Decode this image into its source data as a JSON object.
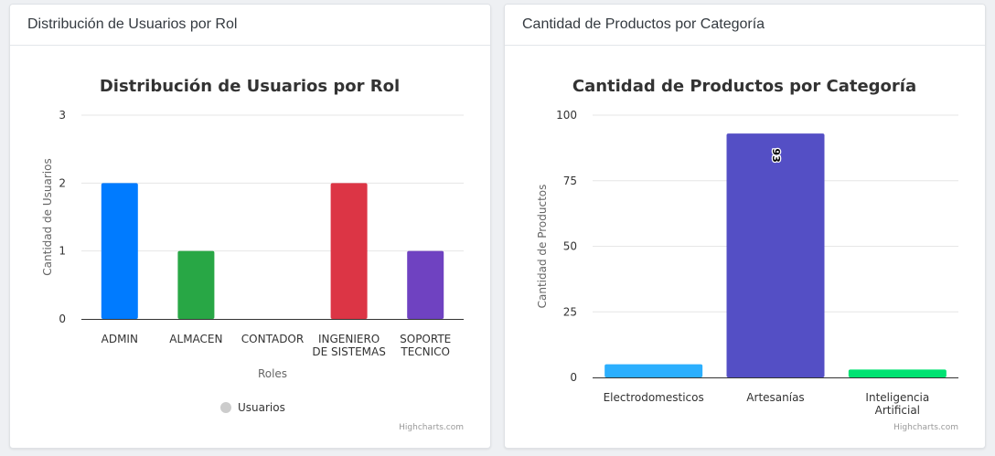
{
  "cards": [
    {
      "header": "Distribución de Usuarios por Rol",
      "credits": "Highcharts.com"
    },
    {
      "header": "Cantidad de Productos por Categoría",
      "credits": "Highcharts.com"
    }
  ],
  "chart_data": [
    {
      "type": "bar",
      "title": "Distribución de Usuarios por Rol",
      "xlabel": "Roles",
      "ylabel": "Cantidad de Usuarios",
      "categories": [
        "ADMIN",
        "ALMACEN",
        "CONTADOR",
        "INGENIERO DE SISTEMAS",
        "SOPORTE TECNICO"
      ],
      "category_lines": [
        [
          "ADMIN"
        ],
        [
          "ALMACEN"
        ],
        [
          "CONTADOR"
        ],
        [
          "INGENIERO",
          "DE SISTEMAS"
        ],
        [
          "SOPORTE",
          "TECNICO"
        ]
      ],
      "series": [
        {
          "name": "Usuarios",
          "values": [
            2,
            1,
            0,
            2,
            1
          ]
        }
      ],
      "colors": [
        "#007bff",
        "#28a745",
        "#ffc107",
        "#dc3545",
        "#6f42c1"
      ],
      "ylim": [
        0,
        3
      ],
      "yticks": [
        0,
        1,
        2,
        3
      ],
      "grid": true,
      "legend": {
        "position": "bottom-center",
        "symbol_color": "#cccccc"
      }
    },
    {
      "type": "bar",
      "title": "Cantidad de Productos por Categoría",
      "xlabel": "",
      "ylabel": "Cantidad de Productos",
      "categories": [
        "Electrodomesticos",
        "Artesanías",
        "Inteligencia Artificial"
      ],
      "category_lines": [
        [
          "Electrodomesticos"
        ],
        [
          "Artesanías"
        ],
        [
          "Inteligencia",
          "Artificial"
        ]
      ],
      "series": [
        {
          "values": [
            5,
            93,
            3
          ]
        }
      ],
      "colors": [
        "#2caffe",
        "#544fc5",
        "#00e272"
      ],
      "data_labels": [
        null,
        "93",
        null
      ],
      "ylim": [
        0,
        100
      ],
      "yticks": [
        0,
        25,
        50,
        75,
        100
      ],
      "grid": true,
      "legend": null
    }
  ]
}
